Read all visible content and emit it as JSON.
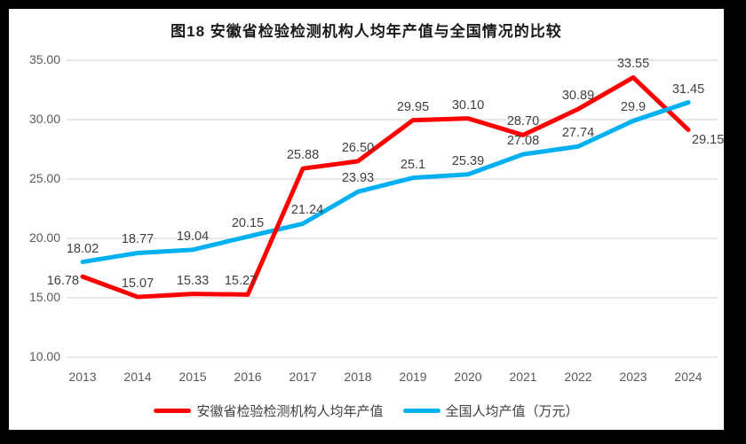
{
  "colors": {
    "frame": "#000000",
    "card_bg": "#ffffff",
    "gridline": "#d9d9d9",
    "axis_text": "#595959",
    "label_text": "#404040",
    "series_anhui": "#ff0000",
    "series_national": "#00b0f0"
  },
  "chart_data": {
    "type": "line",
    "title": "图18 安徽省检验检测机构人均年产值与全国情况的比较",
    "categories": [
      "2013",
      "2014",
      "2015",
      "2016",
      "2017",
      "2018",
      "2019",
      "2020",
      "2021",
      "2022",
      "2023",
      "2024"
    ],
    "series": [
      {
        "name": "安徽省检验检测机构人均年产值",
        "color": "#ff0000",
        "values": [
          16.78,
          15.07,
          15.33,
          15.27,
          25.88,
          26.5,
          29.95,
          30.1,
          28.7,
          30.89,
          33.55,
          29.15
        ],
        "labels": [
          "16.78",
          "15.07",
          "15.33",
          "15.27",
          "25.88",
          "26.50",
          "29.95",
          "30.10",
          "28.70",
          "30.89",
          "33.55",
          "29.15"
        ]
      },
      {
        "name": "全国人均产值（万元）",
        "color": "#00b0f0",
        "values": [
          18.02,
          18.77,
          19.04,
          20.15,
          21.24,
          23.93,
          25.1,
          25.39,
          27.08,
          27.74,
          29.9,
          31.45
        ],
        "labels": [
          "18.02",
          "18.77",
          "19.04",
          "20.15",
          "21.24",
          "23.93",
          "25.1",
          "25.39",
          "27.08",
          "27.74",
          "29.9",
          "31.45"
        ]
      }
    ],
    "y_axis": {
      "ticks": [
        "35.00",
        "30.00",
        "25.00",
        "20.00",
        "15.00",
        "10.00"
      ],
      "tick_values": [
        35,
        30,
        25,
        20,
        15,
        10
      ],
      "min": 10,
      "max": 35
    },
    "grid": true,
    "legend_position": "bottom",
    "data_labels_shown": true
  }
}
